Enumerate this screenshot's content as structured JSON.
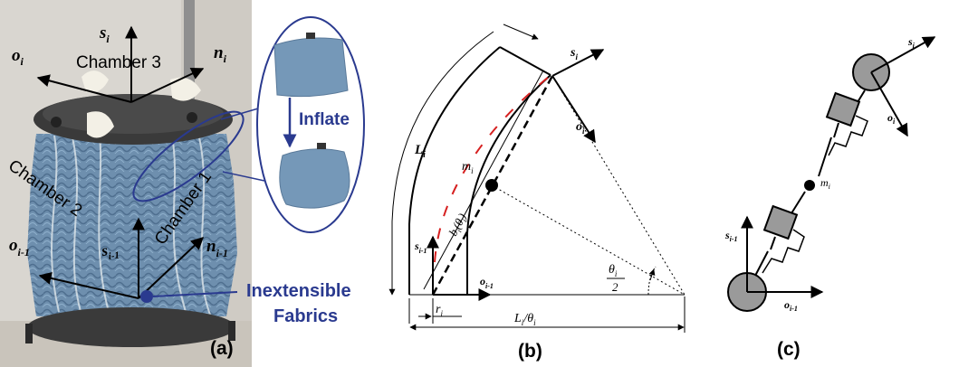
{
  "panel_a": {
    "panel_label": "(a)",
    "chamber_3": "Chamber 3",
    "chamber_1": "Chamber 1",
    "chamber_2": "Chamber 2",
    "axis_s_top": "s",
    "axis_s_top_sub": "i",
    "axis_o_top": "o",
    "axis_o_top_sub": "i",
    "axis_n_top": "n",
    "axis_n_top_sub": "i",
    "axis_s_bottom": "s",
    "axis_s_bottom_sub": "i-1",
    "axis_o_bottom": "o",
    "axis_o_bottom_sub": "i-1",
    "axis_n_bottom": "n",
    "axis_n_bottom_sub": "i-1",
    "inflate": "Inflate",
    "fabrics_line1": "Inextensible",
    "fabrics_line2": "Fabrics",
    "colors": {
      "annotation_blue": "#2a3a8f",
      "fabric_blue": "#6e8fae",
      "frame_dark": "#2b2b2b"
    }
  },
  "panel_b": {
    "panel_label": "(b)",
    "L": "L",
    "L_sub": "i",
    "s_top": "s",
    "s_top_sub": "i",
    "o_top": "o",
    "o_top_sub": "i",
    "m": "m",
    "m_sub": "i",
    "b": "b",
    "b_sub": "i",
    "b_arg": "(θ",
    "b_arg_sub": "i",
    "b_close": ")",
    "s_bottom": "s",
    "s_bottom_sub": "i-1",
    "o_bottom": "o",
    "o_bottom_sub": "i-1",
    "theta": "θ",
    "theta_sub": "i",
    "theta_den": "2",
    "r": "r",
    "r_sub": "i",
    "radius_num": "L",
    "radius_num_sub": "i",
    "radius_slash": "/θ",
    "radius_den_sub": "i",
    "colors": {
      "dash_red": "#d62020"
    }
  },
  "panel_c": {
    "panel_label": "(c)",
    "s_top": "s",
    "s_top_sub": "i",
    "o_top": "o",
    "o_top_sub": "i",
    "m": "m",
    "m_sub": "i",
    "s_bottom": "s",
    "s_bottom_sub": "i-1",
    "o_bottom": "o",
    "o_bottom_sub": "i-1",
    "colors": {
      "joint_gray": "#9a9a9a"
    }
  }
}
